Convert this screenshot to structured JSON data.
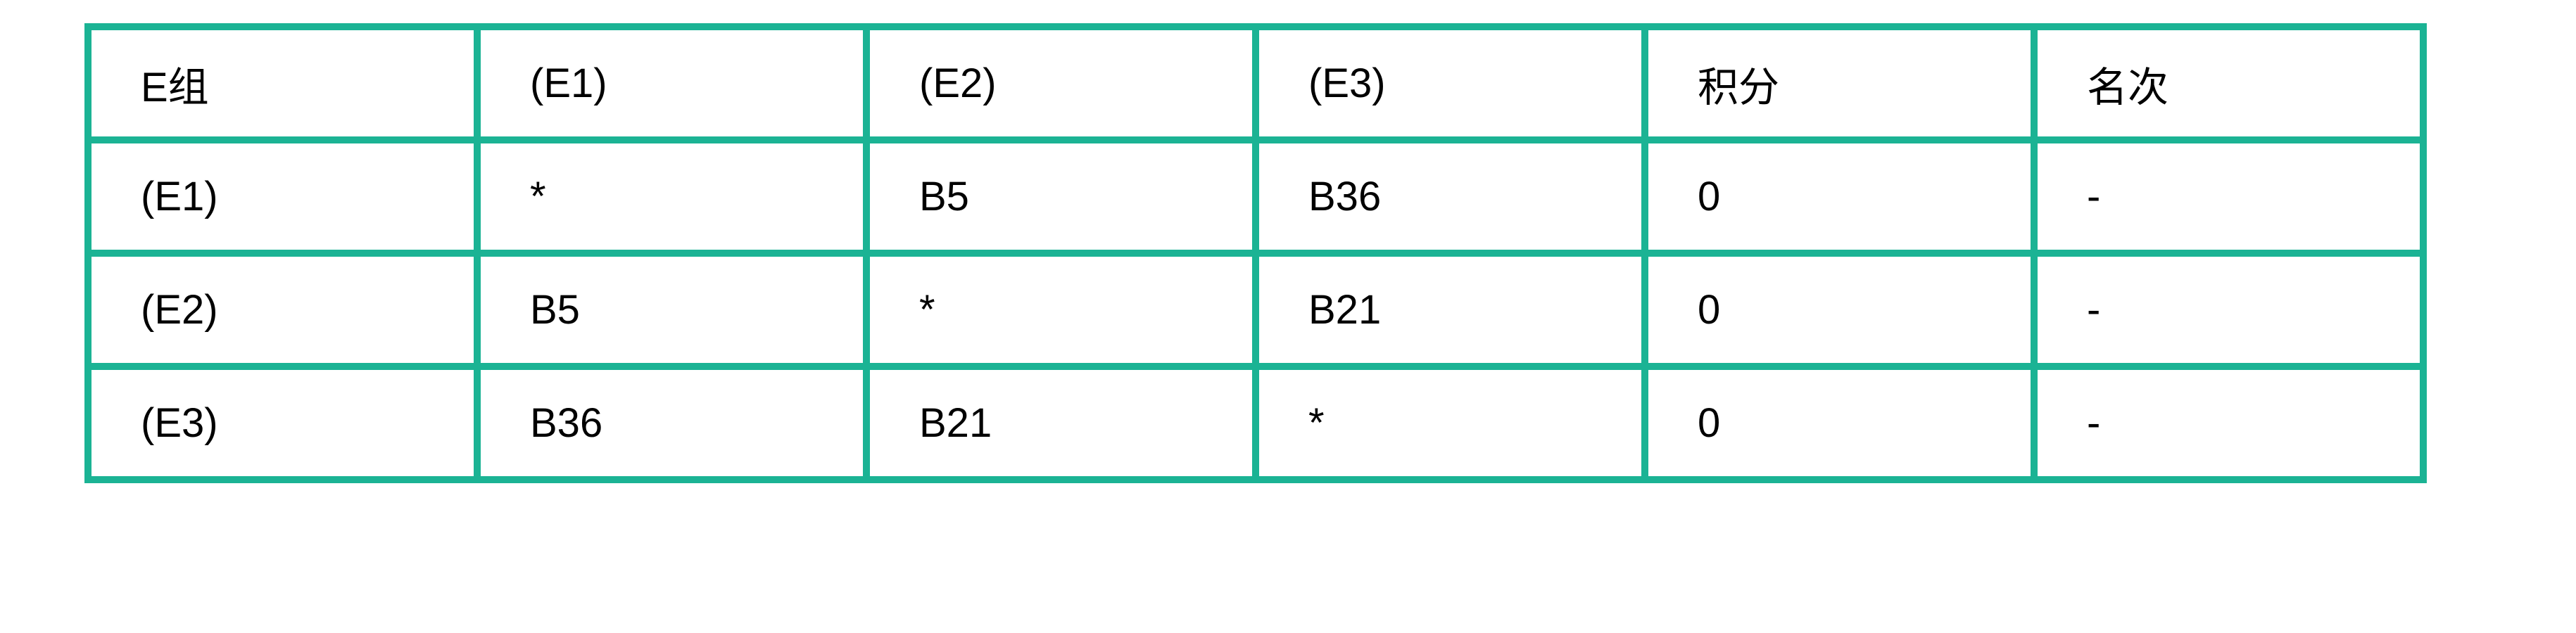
{
  "table": {
    "header": [
      "E组",
      "(E1)",
      "(E2)",
      "(E3)",
      "积分",
      "名次"
    ],
    "rows": [
      [
        "(E1)",
        "*",
        "B5",
        "B36",
        "0",
        "-"
      ],
      [
        "(E2)",
        "B5",
        "*",
        "B21",
        "0",
        "-"
      ],
      [
        "(E3)",
        "B36",
        "B21",
        "*",
        "0",
        "-"
      ]
    ]
  },
  "colors": {
    "border": "#1bb394"
  }
}
